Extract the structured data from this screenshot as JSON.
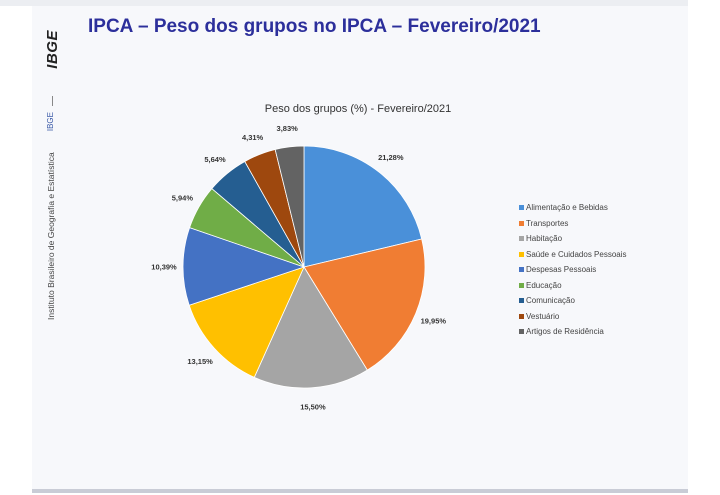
{
  "slide": {
    "title": "IPCA – Peso dos grupos no IPCA – Fevereiro/2021",
    "logo_text": "IBGE",
    "side_abbreviation": "IBGE",
    "side_institute": "Instituto Brasileiro de Geografia e Estatística"
  },
  "chart_data": {
    "type": "pie",
    "title": "Peso dos grupos (%) - Fevereiro/2021",
    "legend_position": "right",
    "categories": [
      "Alimentação e Bebidas",
      "Transportes",
      "Habitação",
      "Saúde e Cuidados Pessoais",
      "Despesas Pessoais",
      "Educação",
      "Comunicação",
      "Vestuário",
      "Artigos de Residência"
    ],
    "values": [
      21.28,
      19.95,
      15.5,
      13.15,
      10.39,
      5.94,
      5.64,
      4.31,
      3.83
    ],
    "labels": [
      "21,28%",
      "19,95%",
      "15,50%",
      "13,15%",
      "10,39%",
      "5,94%",
      "5,64%",
      "4,31%",
      "3,83%"
    ],
    "colors": [
      "#4a90d9",
      "#f07d33",
      "#a5a5a5",
      "#ffc000",
      "#4472c4",
      "#70ad47",
      "#255e91",
      "#9e480e",
      "#636363"
    ]
  }
}
